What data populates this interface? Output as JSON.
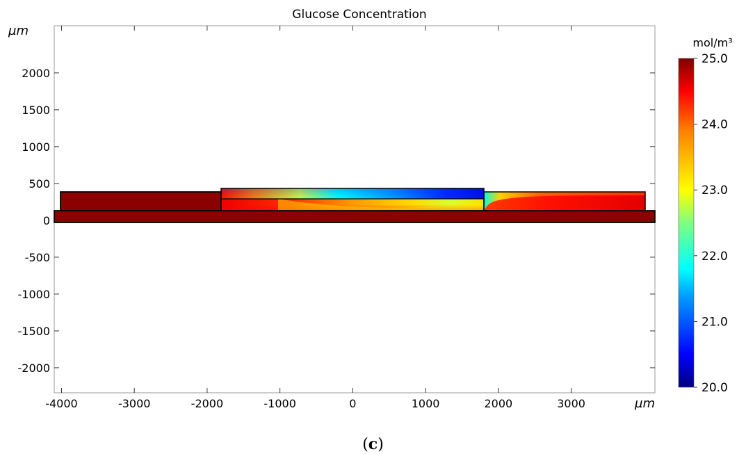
{
  "chart_data": {
    "type": "heatmap",
    "title": "Glucose Concentration",
    "x_unit": "µm",
    "y_unit": "µm",
    "xlim": [
      -4100,
      4150
    ],
    "ylim": [
      -2340,
      2640
    ],
    "xticks": [
      -4000,
      -3000,
      -2000,
      -1000,
      0,
      1000,
      2000,
      3000
    ],
    "yticks": [
      2000,
      1500,
      1000,
      500,
      0,
      -500,
      -1000,
      -1500,
      -2000
    ],
    "grid": false,
    "colorbar": {
      "unit": "mol/m³",
      "min": 20.0,
      "max": 25.0,
      "ticks": [
        "25.0",
        "24.0",
        "23.0",
        "22.0",
        "21.0",
        "20.0"
      ],
      "colormap": "rainbow",
      "stops": [
        "#00007f",
        "#0000ff",
        "#00a0ff",
        "#00ffff",
        "#7fff7f",
        "#ffff00",
        "#ff8000",
        "#ff0000",
        "#7f0000"
      ]
    },
    "regions": [
      {
        "name": "substrate layer",
        "x": [
          -4100,
          4150
        ],
        "y": [
          0,
          150
        ],
        "value": 25.0
      },
      {
        "name": "left reservoir",
        "x": [
          -4000,
          -1800
        ],
        "y": [
          150,
          420
        ],
        "value": 25.0
      },
      {
        "name": "central lower layer",
        "x": [
          -1800,
          1800
        ],
        "y": [
          150,
          320
        ],
        "value_range": [
          23.0,
          25.0
        ]
      },
      {
        "name": "central channel",
        "x": [
          -1800,
          1800
        ],
        "y": [
          320,
          470
        ],
        "value_range": [
          20.3,
          24.5
        ]
      },
      {
        "name": "right reservoir",
        "x": [
          1800,
          4000
        ],
        "y": [
          150,
          420
        ],
        "value_range": [
          21.8,
          25.0
        ]
      }
    ]
  },
  "panel_label": "c"
}
